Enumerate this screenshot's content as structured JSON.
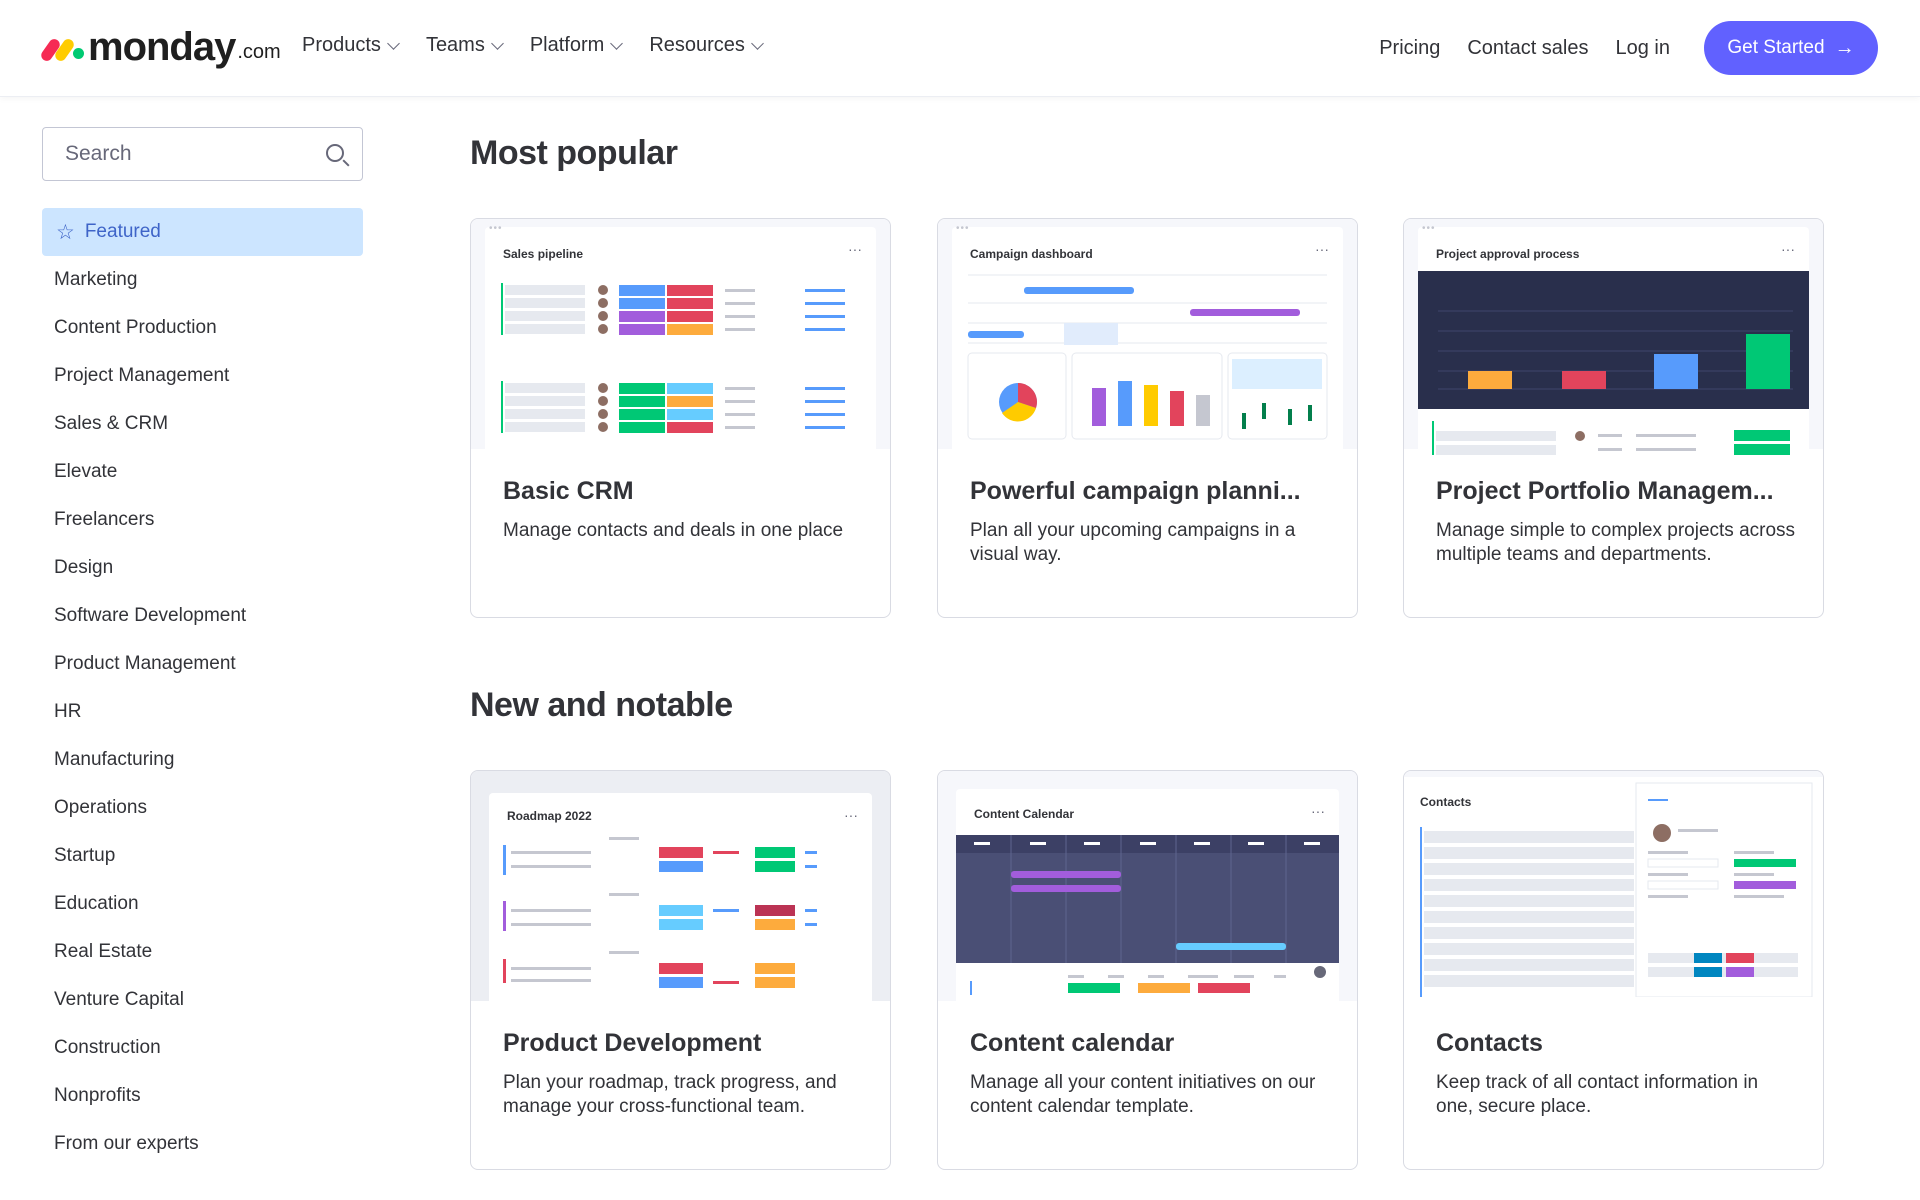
{
  "header": {
    "logo_text": "monday",
    "logo_suffix": ".com",
    "nav": [
      "Products",
      "Teams",
      "Platform",
      "Resources"
    ],
    "right_links": [
      "Pricing",
      "Contact sales",
      "Log in"
    ],
    "cta_label": "Get Started",
    "cta_color": "#6161ff"
  },
  "search": {
    "placeholder": "Search"
  },
  "sidebar": {
    "items": [
      {
        "label": "Featured",
        "active": true
      },
      {
        "label": "Marketing"
      },
      {
        "label": "Content Production"
      },
      {
        "label": "Project Management"
      },
      {
        "label": "Sales & CRM"
      },
      {
        "label": "Elevate"
      },
      {
        "label": "Freelancers"
      },
      {
        "label": "Design"
      },
      {
        "label": "Software Development"
      },
      {
        "label": "Product Management"
      },
      {
        "label": "HR"
      },
      {
        "label": "Manufacturing"
      },
      {
        "label": "Operations"
      },
      {
        "label": "Startup"
      },
      {
        "label": "Education"
      },
      {
        "label": "Real Estate"
      },
      {
        "label": "Venture Capital"
      },
      {
        "label": "Construction"
      },
      {
        "label": "Nonprofits"
      },
      {
        "label": "From our experts"
      }
    ]
  },
  "sections": [
    {
      "title": "Most popular",
      "cards": [
        {
          "thumb_title": "Sales pipeline",
          "title": "Basic CRM",
          "description": "Manage contacts and deals in one place"
        },
        {
          "thumb_title": "Campaign dashboard",
          "title": "Powerful campaign planni...",
          "description": "Plan all your upcoming campaigns in a visual way."
        },
        {
          "thumb_title": "Project approval process",
          "title": "Project Portfolio Managem...",
          "description": "Manage simple to complex projects across multiple teams and departments."
        }
      ]
    },
    {
      "title": "New and notable",
      "cards": [
        {
          "thumb_title": "Roadmap 2022",
          "title": "Product Development",
          "description": "Plan your roadmap, track progress, and manage your cross-functional team."
        },
        {
          "thumb_title": "Content Calendar",
          "title": "Content calendar",
          "description": "Manage all your content initiatives on our content calendar template."
        },
        {
          "thumb_title": "Contacts",
          "title": "Contacts",
          "description": "Keep track of all contact information in one, secure place."
        }
      ]
    }
  ]
}
